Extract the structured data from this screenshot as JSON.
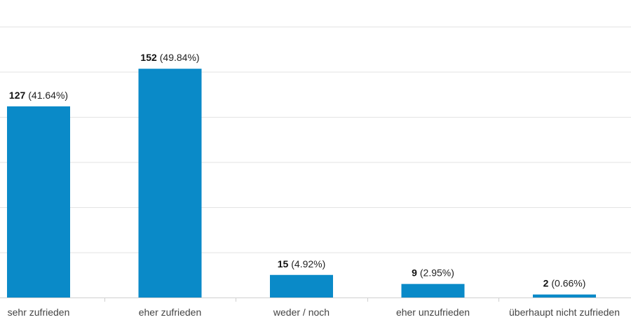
{
  "chart_data": {
    "type": "bar",
    "title": "",
    "xlabel": "",
    "ylabel": "",
    "categories": [
      "sehr zufrieden",
      "eher zufrieden",
      "weder / noch",
      "eher unzufrieden",
      "überhaupt nicht zufrieden"
    ],
    "values": [
      127,
      152,
      15,
      9,
      2
    ],
    "percent_labels": [
      "(41.64%)",
      "(49.84%)",
      "(4.92%)",
      "(2.95%)",
      "(0.66%)"
    ],
    "ylim": [
      0,
      180
    ],
    "y_tick_step": 30,
    "grid": true,
    "legend": "none",
    "colors": {
      "bar": "#0a8ac8",
      "grid": "#e3e3e3",
      "text": "#222222"
    }
  }
}
